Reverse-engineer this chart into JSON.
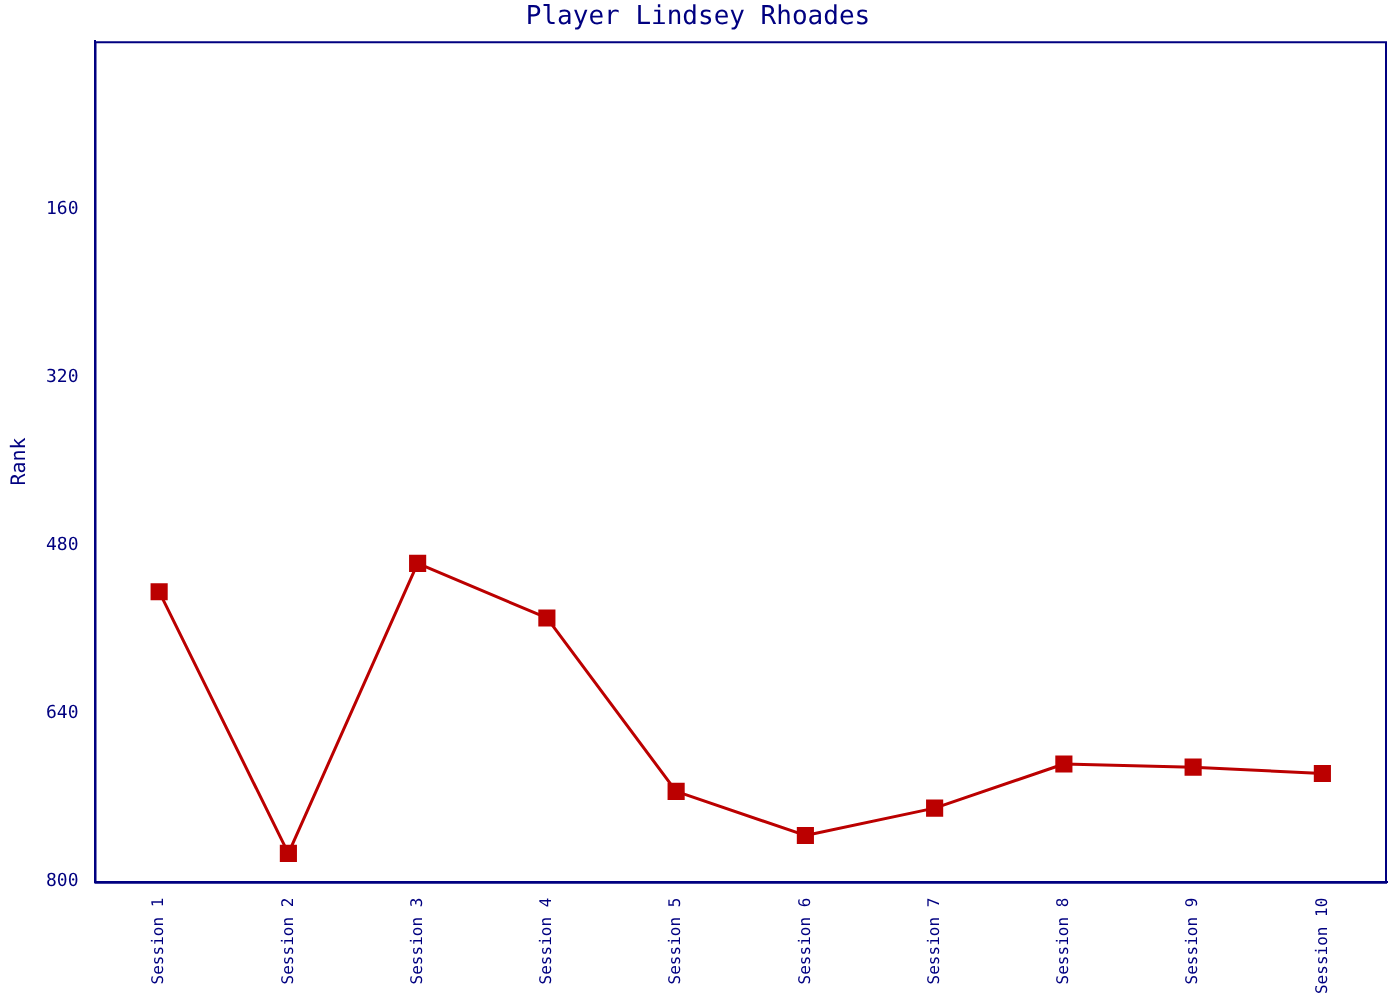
{
  "chart_data": {
    "type": "line",
    "title": "Player Lindsey Rhoades",
    "ylabel": "Rank",
    "categories": [
      "Session 1",
      "Session 2",
      "Session 3",
      "Session 4",
      "Session 5",
      "Session 6",
      "Session 7",
      "Session 8",
      "Session 9",
      "Session 10"
    ],
    "series": [
      {
        "color": "#bb0000",
        "values": [
          524,
          773,
          497,
          549,
          714,
          756,
          730,
          688,
          691,
          697
        ]
      }
    ],
    "ylim": [
      800,
      0
    ],
    "yticks": [
      160,
      320,
      480,
      640,
      800
    ],
    "grid": false,
    "legend": false,
    "marker": "square",
    "line_style": "solid"
  }
}
